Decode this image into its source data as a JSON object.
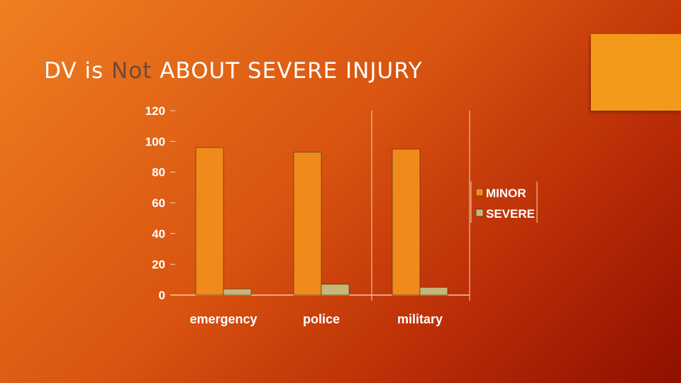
{
  "slide": {
    "title_pre": "DV is ",
    "title_highlight": "Not",
    "title_post": " ABOUT SEVERE INJURY"
  },
  "colors": {
    "minor": "#f08a1a",
    "severe": "#c8b678",
    "accent_box": "#f39a1d",
    "title_highlight": "#6d4a3a"
  },
  "chart_data": {
    "type": "bar",
    "categories": [
      "emergency",
      "police",
      "military"
    ],
    "series": [
      {
        "name": "MINOR",
        "values": [
          96,
          93,
          95
        ]
      },
      {
        "name": "SEVERE",
        "values": [
          4,
          7,
          5
        ]
      }
    ],
    "ytick_labels": [
      "0",
      "20",
      "40",
      "60",
      "80",
      "100",
      "120"
    ],
    "ylim": [
      0,
      120
    ],
    "ytick_step": 20,
    "grid": false,
    "legend_position": "right",
    "title": "",
    "xlabel": "",
    "ylabel": ""
  }
}
